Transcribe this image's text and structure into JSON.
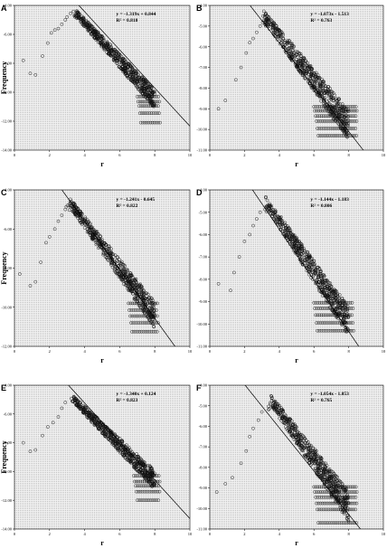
{
  "chart_data": [
    {
      "panel": "A",
      "type": "scatter",
      "xlabel": "r",
      "ylabel": "Frequency",
      "xlim": [
        0,
        10
      ],
      "ylim": [
        -14,
        -4
      ],
      "xticks": [
        "0",
        "2",
        "4",
        "6",
        "8",
        "10"
      ],
      "yticks": [
        "-4.00",
        "-6.00",
        "-8.00",
        "-10.00",
        "-12.00",
        "-14.00"
      ],
      "equation": "y = -1.319x + 0.844",
      "r2": "R² = 0.818",
      "fit": {
        "slope": -1.319,
        "intercept": 0.844
      },
      "rise": [
        [
          0.5,
          -7.8
        ],
        [
          0.9,
          -8.7
        ],
        [
          1.2,
          -8.8
        ],
        [
          1.6,
          -7.5
        ],
        [
          1.9,
          -6.6
        ],
        [
          2.1,
          -5.9
        ],
        [
          2.3,
          -5.7
        ],
        [
          2.5,
          -5.6
        ],
        [
          2.7,
          -5.3
        ],
        [
          2.9,
          -5.0
        ],
        [
          3.0,
          -4.8
        ],
        [
          3.2,
          -4.55
        ]
      ],
      "peak": [
        3.4,
        -4.4
      ],
      "cloud": {
        "x_end": 8.0,
        "y_end": -10.5,
        "spread": 0.45
      },
      "stripes": {
        "x_min": 7.0,
        "x_max": 8.3,
        "y": [
          -10.3,
          -10.65,
          -10.95,
          -11.45,
          -12.1
        ]
      }
    },
    {
      "panel": "B",
      "type": "scatter",
      "xlabel": "r",
      "ylabel": "",
      "xlim": [
        0,
        10
      ],
      "ylim": [
        -11,
        -4
      ],
      "xticks": [
        "0",
        "2",
        "4",
        "6",
        "8",
        "10"
      ],
      "yticks": [
        "-4.00",
        "-5.00",
        "-6.00",
        "-7.00",
        "-8.00",
        "-9.00",
        "-10.00",
        "-11.00"
      ],
      "equation": "y = -1.073x - 1.513",
      "r2": "R² = 0.763",
      "fit": {
        "slope": -1.073,
        "intercept": -1.513
      },
      "rise": [
        [
          0.5,
          -9.0
        ],
        [
          0.9,
          -8.6
        ],
        [
          1.5,
          -7.6
        ],
        [
          1.8,
          -7.0
        ],
        [
          2.1,
          -6.3
        ],
        [
          2.3,
          -5.8
        ],
        [
          2.5,
          -5.6
        ],
        [
          2.7,
          -5.3
        ],
        [
          2.9,
          -5.0
        ]
      ],
      "peak": [
        3.1,
        -4.5
      ],
      "cloud": {
        "x_end": 8.0,
        "y_end": -9.8,
        "spread": 0.5
      },
      "stripes": {
        "x_min": 6.0,
        "x_max": 8.5,
        "y": [
          -8.9,
          -9.1,
          -9.35,
          -9.6,
          -9.95,
          -10.3
        ]
      }
    },
    {
      "panel": "C",
      "type": "scatter",
      "xlabel": "r",
      "ylabel": "Frequency",
      "xlim": [
        0,
        10
      ],
      "ylim": [
        -12,
        -4
      ],
      "xticks": [
        "0",
        "2",
        "4",
        "6",
        "8",
        "10"
      ],
      "yticks": [
        "-4.00",
        "-6.00",
        "-8.00",
        "-10.00",
        "-12.00"
      ],
      "equation": "y = -1.241x - 0.645",
      "r2": "R² = 0.822",
      "fit": {
        "slope": -1.241,
        "intercept": -0.645
      },
      "rise": [
        [
          0.3,
          -8.3
        ],
        [
          0.9,
          -8.9
        ],
        [
          1.2,
          -8.7
        ],
        [
          1.5,
          -7.7
        ],
        [
          1.8,
          -6.7
        ],
        [
          2.0,
          -6.4
        ],
        [
          2.3,
          -6.0
        ],
        [
          2.5,
          -5.6
        ],
        [
          2.7,
          -5.3
        ],
        [
          2.9,
          -5.0
        ]
      ],
      "peak": [
        3.1,
        -4.6
      ],
      "cloud": {
        "x_end": 8.0,
        "y_end": -10.4,
        "spread": 0.45
      },
      "stripes": {
        "x_min": 6.5,
        "x_max": 8.2,
        "y": [
          -9.8,
          -10.15,
          -10.45,
          -10.8,
          -11.25
        ]
      }
    },
    {
      "panel": "D",
      "type": "scatter",
      "xlabel": "r",
      "ylabel": "",
      "xlim": [
        0,
        10
      ],
      "ylim": [
        -11,
        -4
      ],
      "xticks": [
        "0",
        "2",
        "4",
        "6",
        "8",
        "10"
      ],
      "yticks": [
        "-4.00",
        "-5.00",
        "-6.00",
        "-7.00",
        "-8.00",
        "-9.00",
        "-10.00",
        "-11.00"
      ],
      "equation": "y = -1.144x - 1.183",
      "r2": "R² = 0.806",
      "fit": {
        "slope": -1.144,
        "intercept": -1.183
      },
      "rise": [
        [
          0.5,
          -8.2
        ],
        [
          1.2,
          -8.5
        ],
        [
          1.4,
          -7.7
        ],
        [
          1.7,
          -7.0
        ],
        [
          2.0,
          -6.3
        ],
        [
          2.3,
          -6.0
        ],
        [
          2.5,
          -5.6
        ],
        [
          2.7,
          -5.3
        ],
        [
          2.9,
          -5.0
        ]
      ],
      "peak": [
        3.2,
        -4.5
      ],
      "cloud": {
        "x_end": 8.0,
        "y_end": -9.9,
        "spread": 0.45
      },
      "stripes": {
        "x_min": 6.0,
        "x_max": 8.3,
        "y": [
          -9.05,
          -9.3,
          -9.6,
          -9.95,
          -10.3
        ]
      }
    },
    {
      "panel": "E",
      "type": "scatter",
      "xlabel": "r",
      "ylabel": "Frequency",
      "xlim": [
        0,
        10
      ],
      "ylim": [
        -14,
        -4
      ],
      "xticks": [
        "0",
        "2",
        "4",
        "6",
        "8",
        "10"
      ],
      "yticks": [
        "-4.00",
        "-6.00",
        "-8.00",
        "-10.00",
        "-12.00",
        "-14.00"
      ],
      "equation": "y = -1.340x + 0.124",
      "r2": "R² = 0.823",
      "fit": {
        "slope": -1.34,
        "intercept": 0.124
      },
      "rise": [
        [
          0.5,
          -8.0
        ],
        [
          0.9,
          -8.6
        ],
        [
          1.2,
          -8.5
        ],
        [
          1.6,
          -7.5
        ],
        [
          1.9,
          -6.9
        ],
        [
          2.2,
          -6.6
        ],
        [
          2.5,
          -6.2
        ],
        [
          2.7,
          -5.6
        ],
        [
          2.9,
          -5.2
        ]
      ],
      "peak": [
        3.3,
        -4.9
      ],
      "cloud": {
        "x_end": 8.0,
        "y_end": -10.6,
        "spread": 0.45
      },
      "stripes": {
        "x_min": 6.8,
        "x_max": 8.3,
        "y": [
          -10.3,
          -10.7,
          -11.0,
          -11.4,
          -12.0
        ]
      }
    },
    {
      "panel": "F",
      "type": "scatter",
      "xlabel": "r",
      "ylabel": "",
      "xlim": [
        0,
        10
      ],
      "ylim": [
        -11,
        -4
      ],
      "xticks": [
        "0",
        "2",
        "4",
        "6",
        "8",
        "10"
      ],
      "yticks": [
        "-4.00",
        "-5.00",
        "-6.00",
        "-7.00",
        "-8.00",
        "-9.00",
        "-10.00",
        "-11.00"
      ],
      "equation": "y = -1.054x - 1.853",
      "r2": "R² = 0.765",
      "fit": {
        "slope": -1.054,
        "intercept": -1.853
      },
      "rise": [
        [
          0.4,
          -9.2
        ],
        [
          0.9,
          -8.8
        ],
        [
          1.3,
          -8.5
        ],
        [
          1.8,
          -7.8
        ],
        [
          2.1,
          -7.2
        ],
        [
          2.3,
          -6.5
        ],
        [
          2.5,
          -6.1
        ],
        [
          2.8,
          -5.7
        ],
        [
          3.0,
          -5.3
        ]
      ],
      "peak": [
        3.5,
        -4.7
      ],
      "cloud": {
        "x_end": 8.0,
        "y_end": -9.9,
        "spread": 0.5
      },
      "stripes": {
        "x_min": 6.0,
        "x_max": 8.5,
        "y": [
          -8.95,
          -9.2,
          -9.45,
          -9.75,
          -10.05,
          -10.7
        ]
      }
    }
  ]
}
